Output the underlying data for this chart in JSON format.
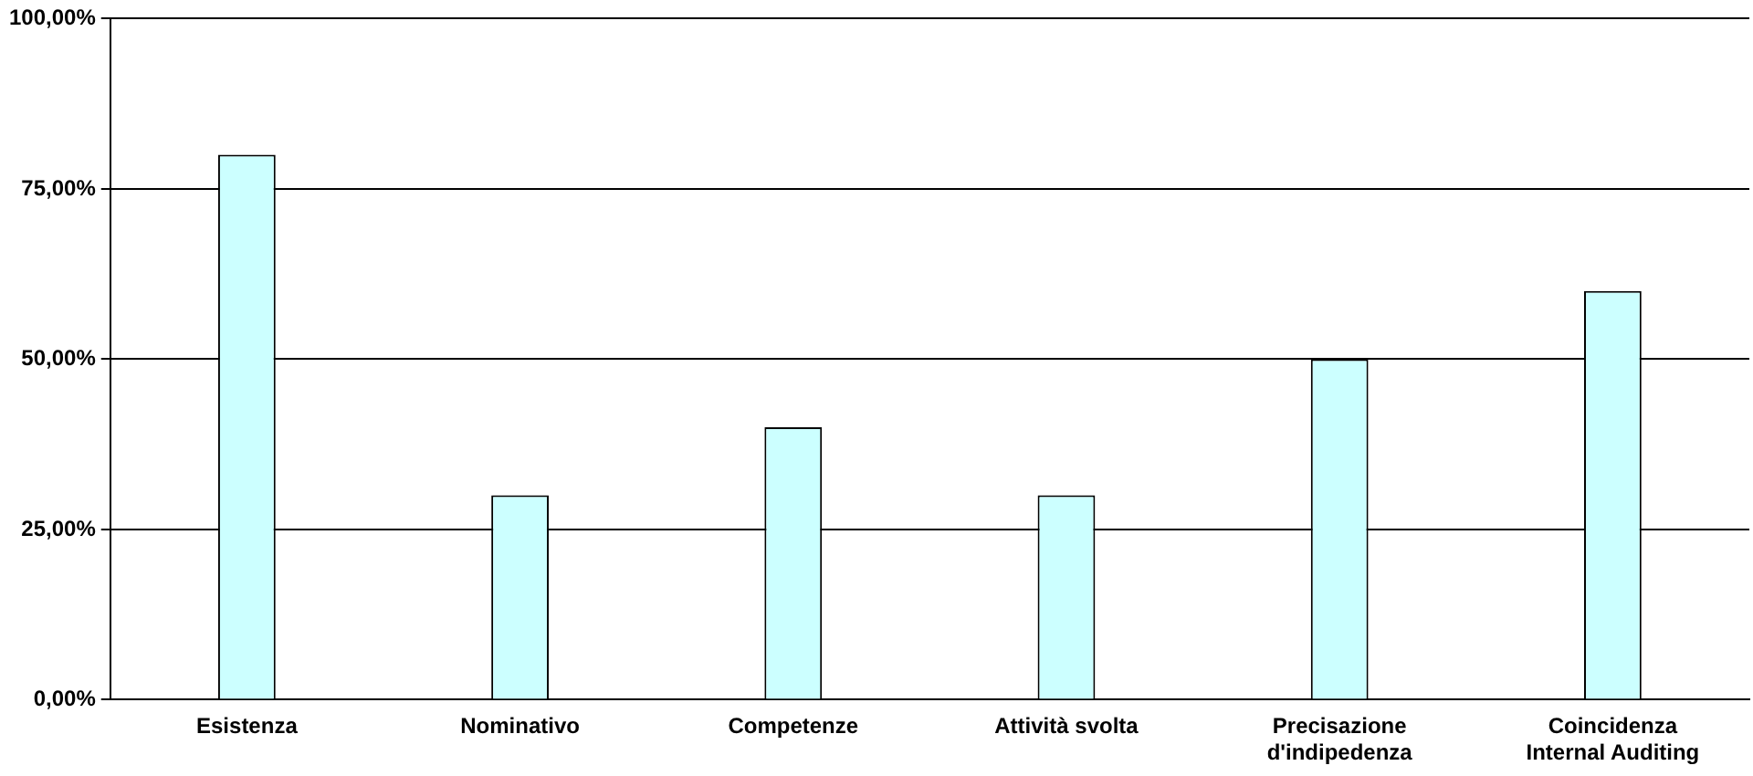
{
  "chart_data": {
    "type": "bar",
    "categories": [
      "Esistenza",
      "Nominativo",
      "Competenze",
      "Attività svolta",
      "Precisazione d'indipedenza",
      "Coincidenza Internal Auditing"
    ],
    "values": [
      80,
      30,
      40,
      30,
      50,
      60
    ],
    "color": "#ccffff",
    "ylim": [
      0,
      100
    ],
    "yticks": [
      {
        "value": 0,
        "label": "0,00%"
      },
      {
        "value": 25,
        "label": "25,00%"
      },
      {
        "value": 50,
        "label": "50,00%"
      },
      {
        "value": 75,
        "label": "75,00%"
      },
      {
        "value": 100,
        "label": "100,00%"
      }
    ],
    "grid": "y",
    "legend": false
  }
}
